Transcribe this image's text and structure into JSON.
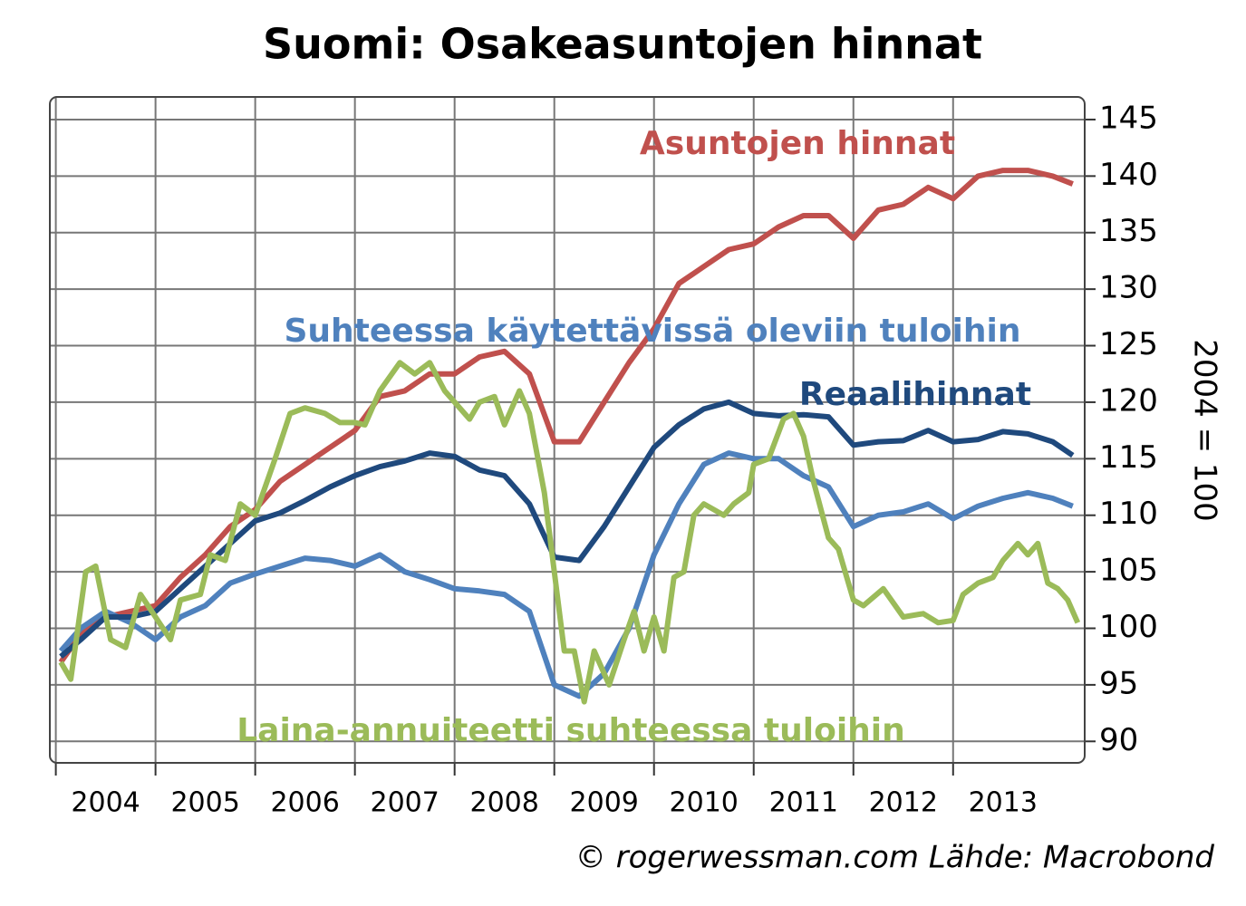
{
  "chart_data": {
    "type": "line",
    "title": "Suomi: Osakeasuntojen hinnat",
    "y_label": "2004 = 100",
    "source": "© rogerwessman.com Lähde: Macrobond",
    "xlim": [
      2003.94,
      2014.32
    ],
    "xticks": [
      2004,
      2005,
      2006,
      2007,
      2008,
      2009,
      2010,
      2011,
      2012,
      2013
    ],
    "ylim": [
      88.1,
      147
    ],
    "yticks": [
      90,
      95,
      100,
      105,
      110,
      115,
      120,
      125,
      130,
      135,
      140,
      145
    ],
    "grid": true,
    "series": [
      {
        "name": "Asuntojen hinnat",
        "color": "#c0504d",
        "x": [
          2004.05,
          2004.25,
          2004.5,
          2004.75,
          2005.0,
          2005.25,
          2005.5,
          2005.75,
          2006.0,
          2006.25,
          2006.5,
          2006.75,
          2007.0,
          2007.25,
          2007.5,
          2007.75,
          2008.0,
          2008.25,
          2008.5,
          2008.75,
          2009.0,
          2009.25,
          2009.5,
          2009.75,
          2010.0,
          2010.25,
          2010.5,
          2010.75,
          2011.0,
          2011.25,
          2011.5,
          2011.75,
          2012.0,
          2012.25,
          2012.5,
          2012.75,
          2013.0,
          2013.25,
          2013.5,
          2013.75,
          2014.0,
          2014.2
        ],
        "values": [
          97,
          99.5,
          101,
          101.5,
          102,
          104.5,
          106.5,
          109,
          110.5,
          113,
          114.5,
          116,
          117.5,
          120.5,
          121,
          122.5,
          122.5,
          124,
          124.5,
          122.5,
          116.5,
          116.5,
          120,
          123.5,
          126.5,
          130.5,
          132,
          133.5,
          134,
          135.5,
          136.5,
          136.5,
          134.5,
          137,
          137.5,
          139,
          138,
          140,
          140.5,
          140.5,
          140,
          139.3
        ]
      },
      {
        "name": "Suhteessa käytettävissä oleviin tuloihin",
        "color": "#4f81bd",
        "x": [
          2004.05,
          2004.25,
          2004.5,
          2004.75,
          2005.0,
          2005.25,
          2005.5,
          2005.75,
          2006.0,
          2006.25,
          2006.5,
          2006.75,
          2007.0,
          2007.25,
          2007.5,
          2007.75,
          2008.0,
          2008.25,
          2008.5,
          2008.75,
          2009.0,
          2009.25,
          2009.5,
          2009.75,
          2010.0,
          2010.25,
          2010.5,
          2010.75,
          2011.0,
          2011.25,
          2011.5,
          2011.75,
          2012.0,
          2012.25,
          2012.5,
          2012.75,
          2013.0,
          2013.25,
          2013.5,
          2013.75,
          2014.0,
          2014.2
        ],
        "values": [
          98,
          100,
          101.5,
          100.5,
          99,
          101,
          102,
          104,
          104.8,
          105.5,
          106.2,
          106,
          105.5,
          106.5,
          105,
          104.3,
          103.5,
          103.3,
          103,
          101.5,
          95,
          94,
          96,
          100,
          106.5,
          111,
          114.5,
          115.5,
          115,
          115,
          113.5,
          112.5,
          109,
          110,
          110.3,
          111,
          109.7,
          110.8,
          111.5,
          112,
          111.5,
          110.8
        ]
      },
      {
        "name": "Reaalihinnat",
        "color": "#1f497d",
        "x": [
          2004.05,
          2004.25,
          2004.5,
          2004.75,
          2005.0,
          2005.25,
          2005.5,
          2005.75,
          2006.0,
          2006.25,
          2006.5,
          2006.75,
          2007.0,
          2007.25,
          2007.5,
          2007.75,
          2008.0,
          2008.25,
          2008.5,
          2008.75,
          2009.0,
          2009.25,
          2009.5,
          2009.75,
          2010.0,
          2010.25,
          2010.5,
          2010.75,
          2011.0,
          2011.25,
          2011.5,
          2011.75,
          2012.0,
          2012.25,
          2012.5,
          2012.75,
          2013.0,
          2013.25,
          2013.5,
          2013.75,
          2014.0,
          2014.2
        ],
        "values": [
          97.5,
          99,
          101,
          101,
          101.5,
          103.5,
          105.5,
          107.5,
          109.5,
          110.2,
          111.3,
          112.5,
          113.5,
          114.3,
          114.8,
          115.5,
          115.2,
          114,
          113.5,
          111,
          106.3,
          106,
          109,
          112.5,
          116,
          118,
          119.4,
          120,
          119,
          118.8,
          118.9,
          118.7,
          116.2,
          116.5,
          116.6,
          117.5,
          116.5,
          116.7,
          117.4,
          117.2,
          116.5,
          115.3
        ]
      },
      {
        "name": "Laina-annuiteetti suhteessa tuloihin",
        "color": "#9bbb59",
        "x": [
          2004.05,
          2004.15,
          2004.3,
          2004.4,
          2004.55,
          2004.7,
          2004.85,
          2005.0,
          2005.15,
          2005.25,
          2005.45,
          2005.55,
          2005.7,
          2005.85,
          2006.0,
          2006.2,
          2006.35,
          2006.5,
          2006.7,
          2006.85,
          2007.0,
          2007.1,
          2007.25,
          2007.45,
          2007.6,
          2007.75,
          2007.9,
          2008.0,
          2008.15,
          2008.25,
          2008.4,
          2008.5,
          2008.65,
          2008.75,
          2008.9,
          2009.0,
          2009.1,
          2009.2,
          2009.3,
          2009.4,
          2009.55,
          2009.7,
          2009.8,
          2009.9,
          2010.0,
          2010.1,
          2010.2,
          2010.3,
          2010.4,
          2010.5,
          2010.7,
          2010.8,
          2010.95,
          2011.0,
          2011.15,
          2011.3,
          2011.4,
          2011.5,
          2011.6,
          2011.75,
          2011.85,
          2012.0,
          2012.1,
          2012.3,
          2012.5,
          2012.7,
          2012.85,
          2013.0,
          2013.1,
          2013.25,
          2013.4,
          2013.5,
          2013.65,
          2013.75,
          2013.85,
          2013.95,
          2014.05,
          2014.15,
          2014.25
        ],
        "values": [
          97,
          95.5,
          105,
          105.5,
          99,
          98.3,
          103,
          101,
          99,
          102.5,
          103,
          106.5,
          106,
          111,
          110,
          115,
          119,
          119.5,
          119,
          118.2,
          118.2,
          118,
          121,
          123.5,
          122.5,
          123.5,
          121,
          120,
          118.5,
          120,
          120.5,
          118,
          121,
          119,
          112,
          105,
          98,
          98,
          93.5,
          98,
          95,
          99,
          101.5,
          98,
          101,
          98,
          104.5,
          105,
          110,
          111,
          110,
          111,
          112,
          114.5,
          115,
          118.5,
          119,
          117,
          113,
          108,
          107,
          102.5,
          102,
          103.5,
          101,
          101.3,
          100.5,
          100.7,
          103,
          104,
          104.5,
          106,
          107.5,
          106.5,
          107.5,
          104,
          103.5,
          102.5,
          100.5
        ]
      }
    ]
  }
}
